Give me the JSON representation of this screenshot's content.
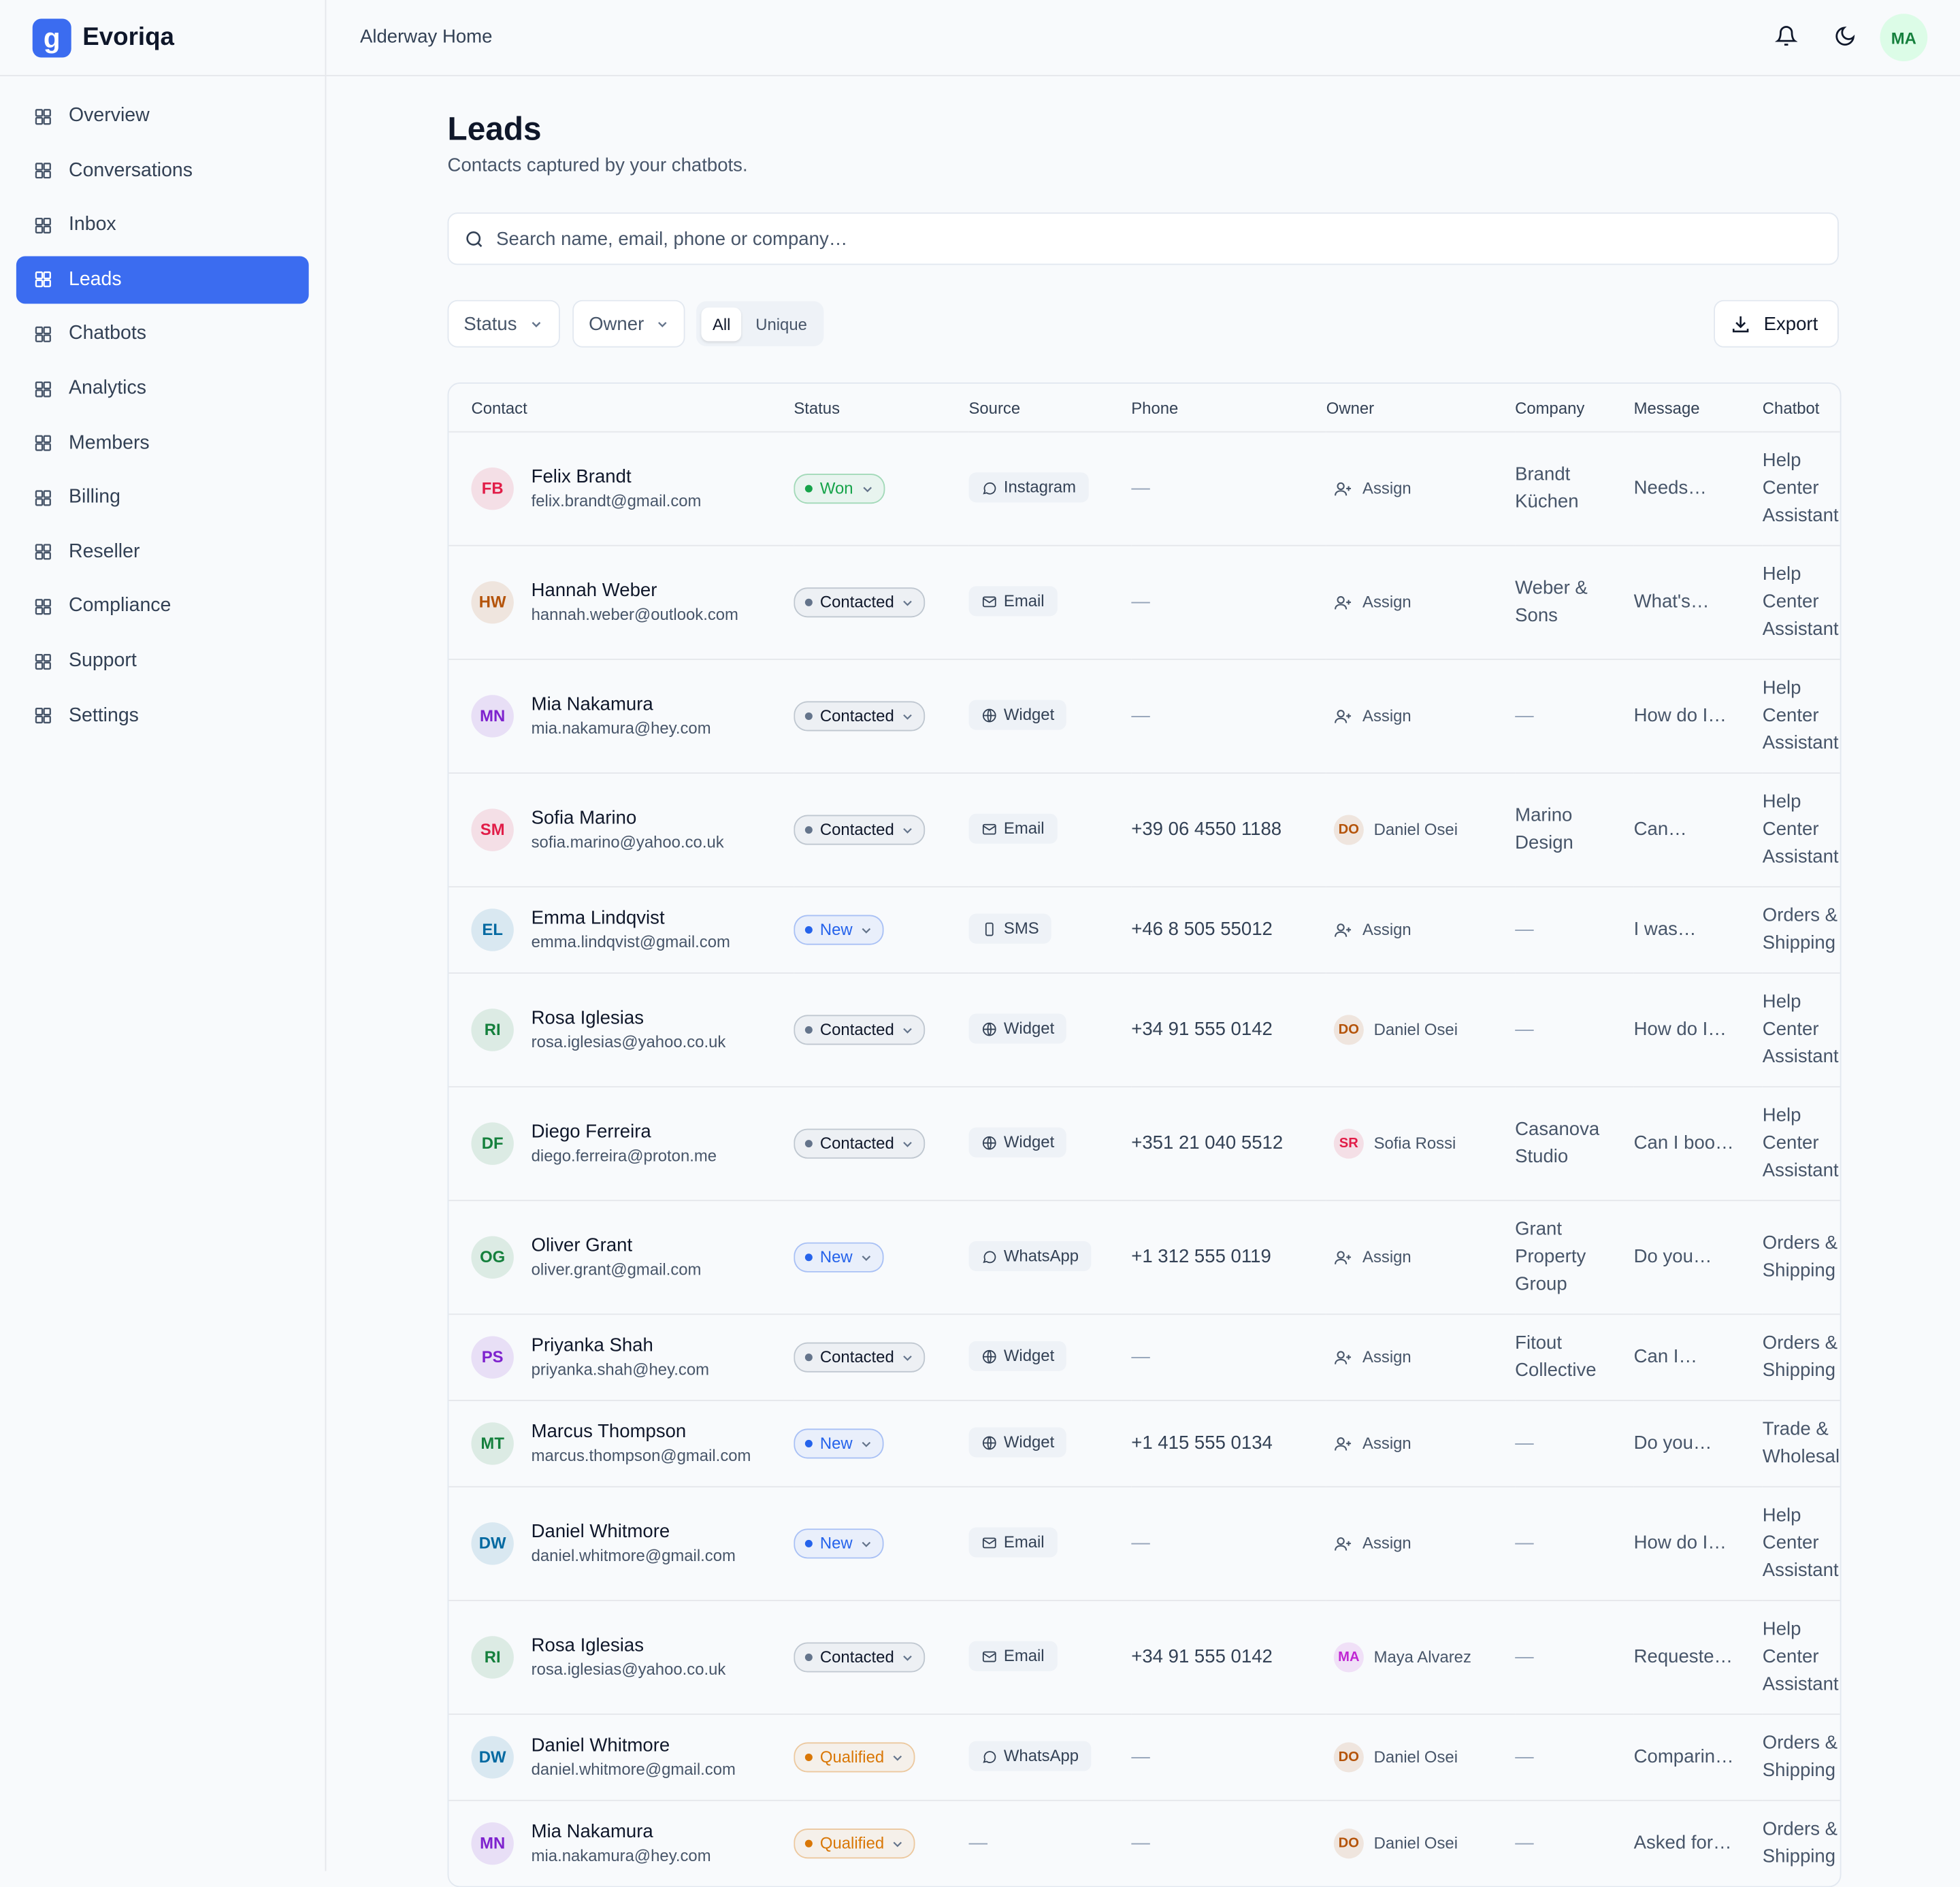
{
  "brand": "Evoriqa",
  "workspace": "Alderway Home",
  "user_initials": "MA",
  "nav": [
    {
      "label": "Overview"
    },
    {
      "label": "Conversations"
    },
    {
      "label": "Inbox"
    },
    {
      "label": "Leads",
      "active": true
    },
    {
      "label": "Chatbots"
    },
    {
      "label": "Analytics"
    },
    {
      "label": "Members"
    },
    {
      "label": "Billing"
    },
    {
      "label": "Reseller"
    },
    {
      "label": "Compliance"
    },
    {
      "label": "Support"
    },
    {
      "label": "Settings"
    }
  ],
  "page": {
    "title": "Leads",
    "subtitle": "Contacts captured by your chatbots.",
    "search_placeholder": "Search name, email, phone or company…"
  },
  "filters": {
    "status": "Status",
    "owner": "Owner",
    "toggle": [
      "All",
      "Unique"
    ],
    "export": "Export"
  },
  "status_colors": {
    "Won": "#16a34a",
    "Contacted": "#64748b",
    "New": "#2563eb",
    "Qualified": "#d97706"
  },
  "source_icons": {
    "Instagram": "chat",
    "WhatsApp": "chat",
    "Email": "mail",
    "Widget": "globe",
    "SMS": "phone"
  },
  "table": {
    "columns": [
      "Contact",
      "Status",
      "Source",
      "Phone",
      "Owner",
      "Company",
      "Message",
      "Chatbot"
    ],
    "rows": [
      {
        "initials": "FB",
        "color": "#e11d48",
        "name": "Felix Brandt",
        "email": "felix.brandt@gmail.com",
        "status": "Won",
        "source": "Instagram",
        "phone": "—",
        "owner": "Assign",
        "company": "Brandt Küchen",
        "message": "Needs…",
        "chatbot": "Help Center Assistant"
      },
      {
        "initials": "HW",
        "color": "#b45309",
        "name": "Hannah Weber",
        "email": "hannah.weber@outlook.com",
        "status": "Contacted",
        "source": "Email",
        "phone": "—",
        "owner": "Assign",
        "company": "Weber & Sons",
        "message": "What's…",
        "chatbot": "Help Center Assistant"
      },
      {
        "initials": "MN",
        "color": "#7e22ce",
        "name": "Mia Nakamura",
        "email": "mia.nakamura@hey.com",
        "status": "Contacted",
        "source": "Widget",
        "phone": "—",
        "owner": "Assign",
        "company": "—",
        "message": "How do I…",
        "chatbot": "Help Center Assistant"
      },
      {
        "initials": "SM",
        "color": "#e11d48",
        "name": "Sofia Marino",
        "email": "sofia.marino@yahoo.co.uk",
        "status": "Contacted",
        "source": "Email",
        "phone": "+39 06 4550 1188",
        "owner_initials": "DO",
        "owner_color": "#b45309",
        "owner": "Daniel Osei",
        "company": "Marino Design",
        "message": "Can…",
        "chatbot": "Help Center Assistant"
      },
      {
        "initials": "EL",
        "color": "#0369a1",
        "name": "Emma Lindqvist",
        "email": "emma.lindqvist@gmail.com",
        "status": "New",
        "source": "SMS",
        "phone": "+46 8 505 55012",
        "owner": "Assign",
        "company": "—",
        "message": "I was…",
        "chatbot": "Orders & Shipping"
      },
      {
        "initials": "RI",
        "color": "#15803d",
        "name": "Rosa Iglesias",
        "email": "rosa.iglesias@yahoo.co.uk",
        "status": "Contacted",
        "source": "Widget",
        "phone": "+34 91 555 0142",
        "owner_initials": "DO",
        "owner_color": "#b45309",
        "owner": "Daniel Osei",
        "company": "—",
        "message": "How do I…",
        "chatbot": "Help Center Assistant"
      },
      {
        "initials": "DF",
        "color": "#15803d",
        "name": "Diego Ferreira",
        "email": "diego.ferreira@proton.me",
        "status": "Contacted",
        "source": "Widget",
        "phone": "+351 21 040 5512",
        "owner_initials": "SR",
        "owner_color": "#e11d48",
        "owner": "Sofia Rossi",
        "company": "Casanova Studio",
        "message": "Can I boo…",
        "chatbot": "Help Center Assistant"
      },
      {
        "initials": "OG",
        "color": "#15803d",
        "name": "Oliver Grant",
        "email": "oliver.grant@gmail.com",
        "status": "New",
        "source": "WhatsApp",
        "phone": "+1 312 555 0119",
        "owner": "Assign",
        "company": "Grant Property Group",
        "message": "Do you…",
        "chatbot": "Orders & Shipping"
      },
      {
        "initials": "PS",
        "color": "#7e22ce",
        "name": "Priyanka Shah",
        "email": "priyanka.shah@hey.com",
        "status": "Contacted",
        "source": "Widget",
        "phone": "—",
        "owner": "Assign",
        "company": "Fitout Collective",
        "message": "Can I…",
        "chatbot": "Orders & Shipping"
      },
      {
        "initials": "MT",
        "color": "#15803d",
        "name": "Marcus Thompson",
        "email": "marcus.thompson@gmail.com",
        "status": "New",
        "source": "Widget",
        "phone": "+1 415 555 0134",
        "owner": "Assign",
        "company": "—",
        "message": "Do you…",
        "chatbot": "Trade & Wholesale"
      },
      {
        "initials": "DW",
        "color": "#0369a1",
        "name": "Daniel Whitmore",
        "email": "daniel.whitmore@gmail.com",
        "status": "New",
        "source": "Email",
        "phone": "—",
        "owner": "Assign",
        "company": "—",
        "message": "How do I…",
        "chatbot": "Help Center Assistant"
      },
      {
        "initials": "RI",
        "color": "#15803d",
        "name": "Rosa Iglesias",
        "email": "rosa.iglesias@yahoo.co.uk",
        "status": "Contacted",
        "source": "Email",
        "phone": "+34 91 555 0142",
        "owner_initials": "MA",
        "owner_color": "#c026d3",
        "owner": "Maya Alvarez",
        "company": "—",
        "message": "Requeste…",
        "chatbot": "Help Center Assistant"
      },
      {
        "initials": "DW",
        "color": "#0369a1",
        "name": "Daniel Whitmore",
        "email": "daniel.whitmore@gmail.com",
        "status": "Qualified",
        "source": "WhatsApp",
        "phone": "—",
        "owner_initials": "DO",
        "owner_color": "#b45309",
        "owner": "Daniel Osei",
        "company": "—",
        "message": "Comparin…",
        "chatbot": "Orders & Shipping"
      },
      {
        "initials": "MN",
        "color": "#7e22ce",
        "name": "Mia Nakamura",
        "email": "mia.nakamura@hey.com",
        "status": "Qualified",
        "source": "—",
        "phone": "—",
        "owner_initials": "DO",
        "owner_color": "#b45309",
        "owner": "Daniel Osei",
        "company": "—",
        "message": "Asked for…",
        "chatbot": "Orders & Shipping"
      }
    ]
  }
}
